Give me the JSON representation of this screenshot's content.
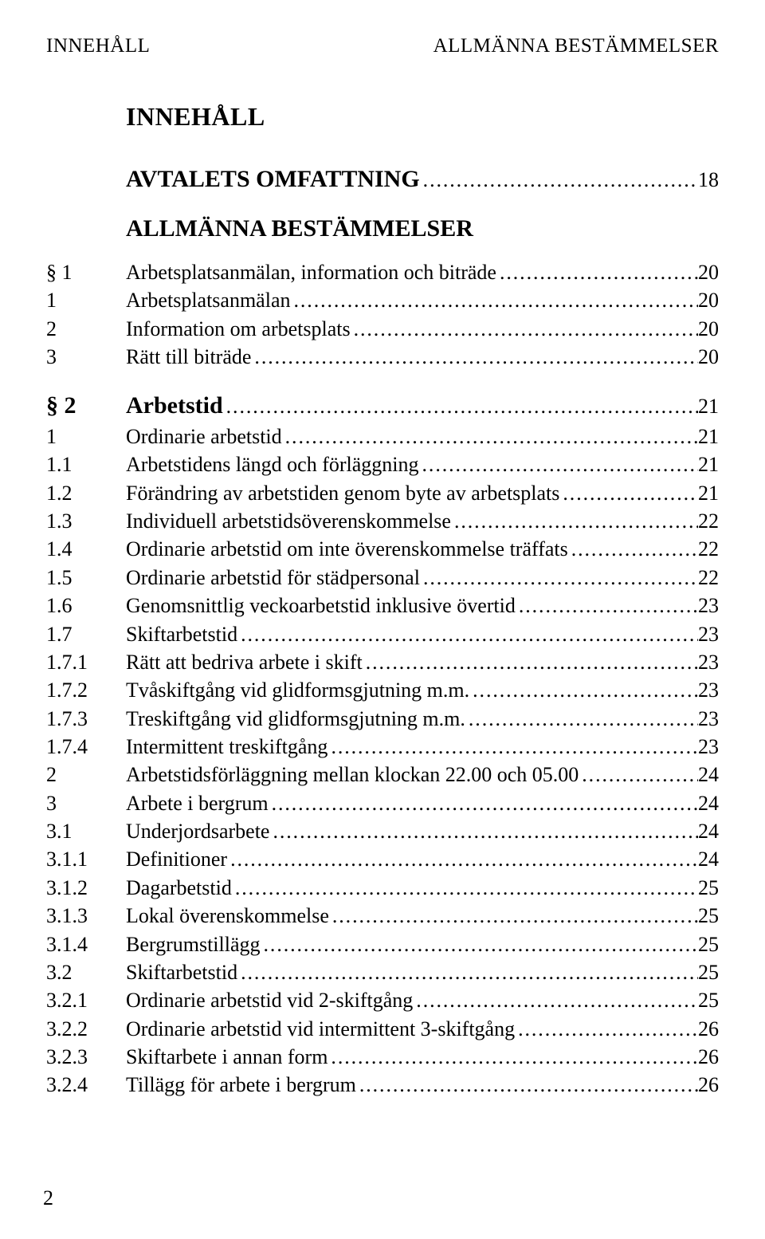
{
  "header": {
    "left": "INNEHÅLL",
    "right": "ALLMÄNNA BESTÄMMELSER"
  },
  "title": "INNEHÅLL",
  "dots": ".........................................................................................................................",
  "sections": [
    {
      "kind": "plain",
      "heading_label": "AVTALETS OMFATTNING",
      "heading_page": "18",
      "entries": []
    },
    {
      "kind": "sym",
      "sym": "§ 1",
      "name": "ALLMÄNNA BESTÄMMELSER",
      "entries": [
        {
          "num": "",
          "label": "Arbetsplatsanmälan, information och biträde",
          "page": "20"
        },
        {
          "num": "1",
          "label": "Arbetsplatsanmälan",
          "page": "20"
        },
        {
          "num": "2",
          "label": "Information om arbetsplats",
          "page": "20"
        },
        {
          "num": "3",
          "label": "Rätt till biträde",
          "page": "20"
        }
      ]
    },
    {
      "kind": "sym",
      "sym": "§ 2",
      "name": "Arbetstid",
      "heading_page": "21",
      "entries": [
        {
          "num": "1",
          "label": "Ordinarie arbetstid",
          "page": "21"
        },
        {
          "num": "1.1",
          "label": "Arbetstidens längd och förläggning",
          "page": "21"
        },
        {
          "num": "1.2",
          "label": "Förändring av arbetstiden genom byte av arbetsplats",
          "page": "21"
        },
        {
          "num": "1.3",
          "label": "Individuell arbetstidsöverenskommelse",
          "page": "22"
        },
        {
          "num": "1.4",
          "label": "Ordinarie arbetstid om inte överenskommelse träffats",
          "page": "22"
        },
        {
          "num": "1.5",
          "label": "Ordinarie arbetstid för städpersonal",
          "page": "22"
        },
        {
          "num": "1.6",
          "label": "Genomsnittlig veckoarbetstid inklusive övertid",
          "page": "23"
        },
        {
          "num": "1.7",
          "label": "Skiftarbetstid",
          "page": "23"
        },
        {
          "num": "1.7.1",
          "label": "Rätt att bedriva arbete i skift",
          "page": "23"
        },
        {
          "num": "1.7.2",
          "label": "Tvåskiftgång vid glidformsgjutning m.m. ",
          "page": "23"
        },
        {
          "num": "1.7.3",
          "label": "Treskiftgång vid glidformsgjutning m.m. ",
          "page": "23"
        },
        {
          "num": "1.7.4",
          "label": "Intermittent treskiftgång",
          "page": "23"
        },
        {
          "num": "2",
          "label": "Arbetstidsförläggning mellan klockan 22.00 och 05.00",
          "page": "24"
        },
        {
          "num": "3",
          "label": "Arbete i bergrum",
          "page": "24"
        },
        {
          "num": "3.1",
          "label": "Underjordsarbete",
          "page": "24"
        },
        {
          "num": "3.1.1",
          "label": "Definitioner",
          "page": "24"
        },
        {
          "num": "3.1.2",
          "label": "Dagarbetstid",
          "page": "25"
        },
        {
          "num": "3.1.3",
          "label": "Lokal överenskommelse",
          "page": "25"
        },
        {
          "num": "3.1.4",
          "label": "Bergrumstillägg",
          "page": "25"
        },
        {
          "num": "3.2",
          "label": "Skiftarbetstid",
          "page": "25"
        },
        {
          "num": "3.2.1",
          "label": "Ordinarie arbetstid vid 2-skiftgång",
          "page": "25"
        },
        {
          "num": "3.2.2",
          "label": "Ordinarie arbetstid vid intermittent 3-skiftgång",
          "page": "26"
        },
        {
          "num": "3.2.3",
          "label": "Skiftarbete i annan form",
          "page": "26"
        },
        {
          "num": "3.2.4",
          "label": "Tillägg för arbete i bergrum",
          "page": "26"
        }
      ]
    }
  ],
  "page_number": "2"
}
